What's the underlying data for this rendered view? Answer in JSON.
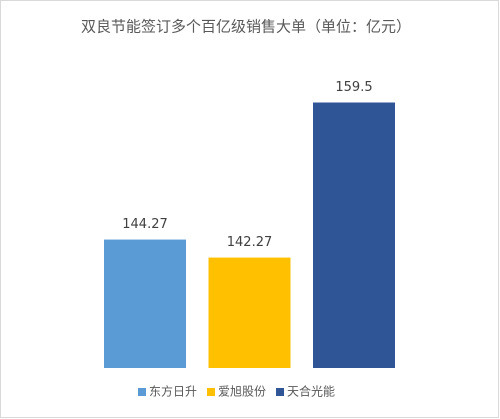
{
  "chart_data": {
    "type": "bar",
    "title": "双良节能签订多个百亿级销售大单（单位：亿元）",
    "categories": [
      null
    ],
    "series": [
      {
        "name": "东方日升",
        "color": "#5b9bd5",
        "values": [
          144.27
        ]
      },
      {
        "name": "爱旭股份",
        "color": "#ffc000",
        "values": [
          142.27
        ]
      },
      {
        "name": "天合光能",
        "color": "#2f5597",
        "values": [
          159.5
        ]
      }
    ],
    "ylim": [
      130,
      165
    ],
    "legend": "bottom"
  }
}
